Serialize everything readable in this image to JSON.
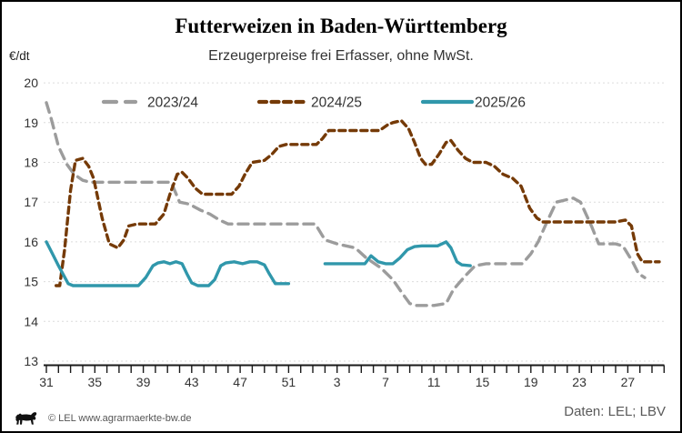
{
  "header": {
    "title": "Futterweizen in Baden-Württemberg",
    "subtitle": "Erzeugerpreise frei Erfasser, ohne MwSt.",
    "unit_label": "€/dt"
  },
  "footer": {
    "copyright": "© LEL www.agrarmaerkte-bw.de",
    "source": "Daten: LEL; LBV",
    "logo_icon": "bw-lion-icon"
  },
  "chart_data": {
    "type": "line",
    "title": "Futterweizen in Baden-Württemberg",
    "subtitle": "Erzeugerpreise frei Erfasser, ohne MwSt.",
    "ylabel": "€/dt",
    "y_axis": {
      "min": 13,
      "max": 20,
      "step": 1,
      "ticks": [
        20,
        19,
        18,
        17,
        16,
        15,
        14,
        13
      ]
    },
    "x_axis": {
      "start_week": 31,
      "total_weeks": 52,
      "tick_every_week": true,
      "labels": [
        31,
        35,
        39,
        43,
        47,
        51,
        3,
        7,
        11,
        15,
        19,
        23,
        27
      ]
    },
    "grid": "horizontal-dashed",
    "legend_position": "top-inside",
    "colors": {
      "grid": "#dcdcdc",
      "axis": "#1a1a1a",
      "text": "#333333"
    },
    "series": [
      {
        "name": "2023/24",
        "color": "#9c9c9c",
        "line_style": "dashed-long",
        "points": [
          [
            31,
            19.5
          ],
          [
            31.4,
            19.1
          ],
          [
            32,
            18.4
          ],
          [
            32.7,
            17.95
          ],
          [
            33.3,
            17.7
          ],
          [
            34,
            17.55
          ],
          [
            34.6,
            17.5
          ],
          [
            36,
            17.5
          ],
          [
            38,
            17.5
          ],
          [
            40,
            17.5
          ],
          [
            41.3,
            17.5
          ],
          [
            42,
            17.0
          ],
          [
            42.8,
            16.95
          ],
          [
            43.7,
            16.8
          ],
          [
            44.5,
            16.7
          ],
          [
            45.3,
            16.55
          ],
          [
            46,
            16.45
          ],
          [
            48,
            16.45
          ],
          [
            50,
            16.45
          ],
          [
            52,
            16.45
          ],
          [
            1.2,
            16.45
          ],
          [
            2,
            16.05
          ],
          [
            3,
            15.95
          ],
          [
            4.5,
            15.85
          ],
          [
            5.4,
            15.6
          ],
          [
            6.6,
            15.35
          ],
          [
            7.6,
            15.05
          ],
          [
            8.4,
            14.7
          ],
          [
            9,
            14.45
          ],
          [
            9.5,
            14.4
          ],
          [
            11,
            14.4
          ],
          [
            12,
            14.45
          ],
          [
            12.6,
            14.8
          ],
          [
            13.6,
            15.15
          ],
          [
            14.4,
            15.4
          ],
          [
            15.3,
            15.45
          ],
          [
            17,
            15.45
          ],
          [
            18.3,
            15.45
          ],
          [
            19,
            15.7
          ],
          [
            19.6,
            16.0
          ],
          [
            20.4,
            16.55
          ],
          [
            21.1,
            17.0
          ],
          [
            21.8,
            17.05
          ],
          [
            22.5,
            17.1
          ],
          [
            23.1,
            17.0
          ],
          [
            24,
            16.4
          ],
          [
            24.6,
            15.95
          ],
          [
            26,
            15.95
          ],
          [
            26.6,
            15.9
          ],
          [
            27.4,
            15.5
          ],
          [
            27.9,
            15.2
          ],
          [
            28.4,
            15.1
          ]
        ]
      },
      {
        "name": "2024/25",
        "color": "#753a07",
        "line_style": "dashed-short",
        "points": [
          [
            31.8,
            14.9
          ],
          [
            32.1,
            14.9
          ],
          [
            32.5,
            15.8
          ],
          [
            33,
            17.3
          ],
          [
            33.4,
            18.05
          ],
          [
            34,
            18.1
          ],
          [
            34.5,
            17.9
          ],
          [
            34.9,
            17.6
          ],
          [
            35.6,
            16.6
          ],
          [
            36.2,
            15.95
          ],
          [
            36.9,
            15.85
          ],
          [
            37.4,
            16.05
          ],
          [
            37.8,
            16.4
          ],
          [
            38.5,
            16.45
          ],
          [
            40,
            16.45
          ],
          [
            40.7,
            16.7
          ],
          [
            41.2,
            17.2
          ],
          [
            41.8,
            17.7
          ],
          [
            42.2,
            17.75
          ],
          [
            42.7,
            17.6
          ],
          [
            43.3,
            17.35
          ],
          [
            43.9,
            17.2
          ],
          [
            45,
            17.2
          ],
          [
            46.3,
            17.2
          ],
          [
            46.9,
            17.4
          ],
          [
            47.4,
            17.7
          ],
          [
            48,
            18.0
          ],
          [
            49,
            18.05
          ],
          [
            49.6,
            18.2
          ],
          [
            50.2,
            18.4
          ],
          [
            50.8,
            18.45
          ],
          [
            52,
            18.45
          ],
          [
            1.3,
            18.45
          ],
          [
            1.8,
            18.6
          ],
          [
            2.3,
            18.8
          ],
          [
            3.5,
            18.8
          ],
          [
            5,
            18.8
          ],
          [
            6.5,
            18.8
          ],
          [
            7.2,
            18.95
          ],
          [
            7.6,
            19.0
          ],
          [
            8.3,
            19.05
          ],
          [
            8.9,
            18.85
          ],
          [
            9.4,
            18.5
          ],
          [
            9.9,
            18.1
          ],
          [
            10.3,
            17.95
          ],
          [
            10.8,
            17.95
          ],
          [
            11.4,
            18.2
          ],
          [
            12,
            18.5
          ],
          [
            12.4,
            18.55
          ],
          [
            13,
            18.3
          ],
          [
            13.6,
            18.1
          ],
          [
            14.2,
            18.0
          ],
          [
            15.3,
            18.0
          ],
          [
            16,
            17.9
          ],
          [
            16.7,
            17.7
          ],
          [
            17.5,
            17.6
          ],
          [
            18.2,
            17.4
          ],
          [
            18.9,
            16.85
          ],
          [
            19.5,
            16.6
          ],
          [
            20,
            16.5
          ],
          [
            22,
            16.5
          ],
          [
            24,
            16.5
          ],
          [
            26,
            16.5
          ],
          [
            26.8,
            16.55
          ],
          [
            27.3,
            16.4
          ],
          [
            27.8,
            15.7
          ],
          [
            28.2,
            15.5
          ],
          [
            29,
            15.5
          ],
          [
            29.6,
            15.5
          ]
        ]
      },
      {
        "name": "2025/26",
        "color": "#3097ab",
        "line_style": "solid",
        "segments": [
          [
            [
              31,
              16.0
            ],
            [
              31.5,
              15.7
            ],
            [
              32,
              15.4
            ],
            [
              32.8,
              14.95
            ],
            [
              33.2,
              14.9
            ],
            [
              35,
              14.9
            ],
            [
              37,
              14.9
            ],
            [
              38.6,
              14.9
            ],
            [
              39.2,
              15.1
            ],
            [
              39.8,
              15.4
            ],
            [
              40.2,
              15.47
            ],
            [
              40.7,
              15.5
            ],
            [
              41.2,
              15.45
            ],
            [
              41.7,
              15.5
            ],
            [
              42.2,
              15.45
            ],
            [
              42.6,
              15.2
            ],
            [
              43,
              14.97
            ],
            [
              43.5,
              14.9
            ],
            [
              44.4,
              14.9
            ],
            [
              44.9,
              15.05
            ],
            [
              45.4,
              15.4
            ],
            [
              45.8,
              15.47
            ],
            [
              46.5,
              15.5
            ],
            [
              47.2,
              15.45
            ],
            [
              47.8,
              15.5
            ],
            [
              48.4,
              15.5
            ],
            [
              49,
              15.42
            ],
            [
              49.4,
              15.2
            ],
            [
              49.9,
              14.95
            ],
            [
              51,
              14.95
            ]
          ],
          [
            [
              2,
              15.45
            ],
            [
              3,
              15.45
            ],
            [
              4.5,
              15.45
            ],
            [
              5.3,
              15.45
            ],
            [
              5.8,
              15.65
            ],
            [
              6.4,
              15.5
            ],
            [
              7,
              15.45
            ],
            [
              7.6,
              15.45
            ],
            [
              8.2,
              15.6
            ],
            [
              8.8,
              15.8
            ],
            [
              9.4,
              15.88
            ],
            [
              10,
              15.9
            ],
            [
              10.8,
              15.9
            ],
            [
              11.3,
              15.9
            ],
            [
              12,
              16.0
            ],
            [
              12.4,
              15.85
            ],
            [
              12.9,
              15.5
            ],
            [
              13.3,
              15.42
            ],
            [
              14,
              15.4
            ]
          ]
        ]
      }
    ]
  }
}
